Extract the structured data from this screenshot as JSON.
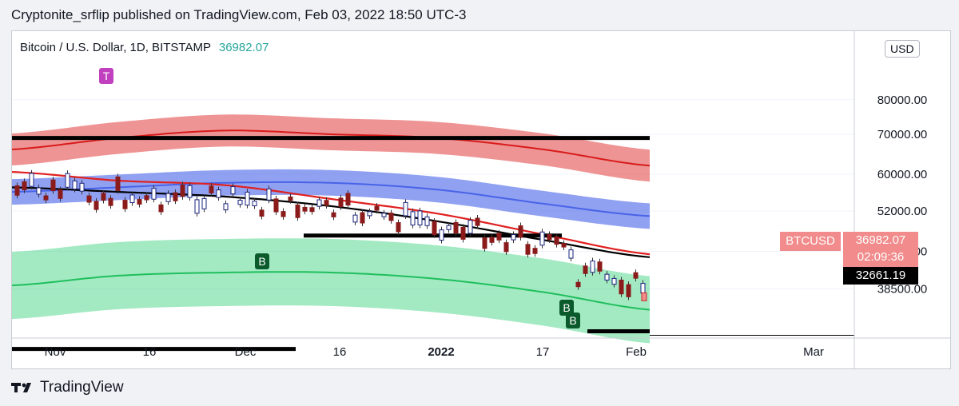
{
  "header": {
    "published_text": "Cryptonite_srflip published on TradingView.com, Feb 03, 2022 18:50 UTC-3"
  },
  "legend": {
    "symbol": "Bitcoin / U.S. Dollar, 1D, BITSTAMP",
    "last_price": "36982.07"
  },
  "currency_label": "USD",
  "price_scale": [
    "80000.00",
    "70000.00",
    "60000.00",
    "52000.00",
    "44500.00",
    "38500.00"
  ],
  "last_badge": {
    "ticker": "BTCUSD",
    "price": "36982.07",
    "countdown": "02:09:36"
  },
  "level_badge": {
    "price": "32661.19"
  },
  "time_axis": [
    "Nov",
    "16",
    "Dec",
    "16",
    "2022",
    "17",
    "Feb",
    "Mar"
  ],
  "markers": [
    {
      "label": "T",
      "kind": "top",
      "color": "#c040c0"
    },
    {
      "label": "B",
      "kind": "buy",
      "color": "#0b5a2c"
    },
    {
      "label": "B",
      "kind": "buy",
      "color": "#0b5a2c"
    },
    {
      "label": "B",
      "kind": "buy",
      "color": "#0b5a2c"
    }
  ],
  "colors": {
    "up": "#26a69a",
    "down": "#c62828",
    "buy_marker": "#0b5a2c",
    "top_marker": "#c040c0",
    "band_red": "#e34d4d",
    "band_blue": "#4863e8",
    "band_green": "#34d07a",
    "ma_black": "#000000"
  },
  "footer": {
    "brand": "TradingView"
  },
  "chart_data": {
    "type": "line",
    "y_scale": "log",
    "ylim": [
      30000,
      84000
    ],
    "x": [
      "Nov",
      "16",
      "Dec",
      "16",
      "2022",
      "17",
      "Feb"
    ],
    "series": [
      {
        "color": "#e34d4d",
        "values": [
          66000,
          69000,
          71000,
          70000,
          69000,
          66000,
          62000
        ]
      },
      {
        "color": "#4863e8",
        "values": [
          56000,
          57000,
          58000,
          58000,
          56500,
          53500,
          51000
        ]
      },
      {
        "color": "#34d07a",
        "values": [
          39000,
          40500,
          41000,
          41000,
          40000,
          38000,
          35500
        ]
      },
      {
        "color": "#e02020",
        "values": [
          60500,
          58500,
          57500,
          54500,
          51500,
          47500,
          44000
        ]
      },
      {
        "color": "#000000",
        "values": [
          57000,
          56000,
          55000,
          53000,
          50000,
          46500,
          43500
        ]
      }
    ],
    "horizontal_levels": [
      69000,
      47300,
      32661.19,
      30500
    ],
    "last_price": 36982.07
  }
}
